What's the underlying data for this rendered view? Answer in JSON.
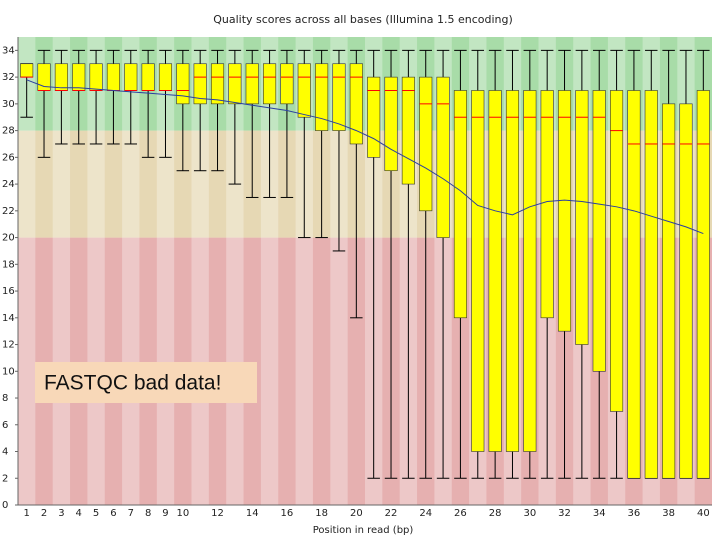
{
  "chart_data": {
    "type": "box",
    "title": "Quality scores across all bases (Illumina 1.5 encoding)",
    "x_label": "Position in read (bp)",
    "annotation": "FASTQC bad data!",
    "categories": [
      "1",
      "2",
      "3",
      "4",
      "5",
      "6",
      "7",
      "8",
      "9",
      "10",
      null,
      "12",
      null,
      "14",
      null,
      "16",
      null,
      "18",
      null,
      "20",
      null,
      "22",
      null,
      "24",
      null,
      "26",
      null,
      "28",
      null,
      "30",
      null,
      "32",
      null,
      "34",
      null,
      "36",
      null,
      "38",
      null,
      "40"
    ],
    "whislo": [
      29,
      26,
      27,
      27,
      27,
      27,
      27,
      26,
      26,
      25,
      25,
      25,
      24,
      23,
      23,
      23,
      20,
      20,
      19,
      14,
      2,
      2,
      2,
      2,
      2,
      2,
      2,
      2,
      2,
      2,
      2,
      2,
      2,
      2,
      2,
      2,
      2,
      2,
      2,
      2
    ],
    "q1": [
      32,
      31,
      31,
      31,
      31,
      31,
      31,
      31,
      31,
      30,
      30,
      30,
      30,
      30,
      30,
      30,
      29,
      28,
      28,
      27,
      26,
      25,
      24,
      22,
      20,
      14,
      4,
      4,
      4,
      4,
      14,
      13,
      12,
      10,
      7,
      2,
      2,
      2,
      2,
      2
    ],
    "median": [
      32,
      31,
      31,
      31,
      31,
      31,
      31,
      31,
      31,
      31,
      32,
      32,
      32,
      32,
      32,
      32,
      32,
      32,
      32,
      32,
      31,
      31,
      31,
      30,
      30,
      29,
      29,
      29,
      29,
      29,
      29,
      29,
      29,
      29,
      28,
      27,
      27,
      27,
      27,
      27
    ],
    "q3": [
      33,
      33,
      33,
      33,
      33,
      33,
      33,
      33,
      33,
      33,
      33,
      33,
      33,
      33,
      33,
      33,
      33,
      33,
      33,
      33,
      32,
      32,
      32,
      32,
      32,
      31,
      31,
      31,
      31,
      31,
      31,
      31,
      31,
      31,
      31,
      31,
      31,
      30,
      30,
      31
    ],
    "whishi": [
      33,
      34,
      34,
      34,
      34,
      34,
      34,
      34,
      34,
      34,
      34,
      34,
      34,
      34,
      34,
      34,
      34,
      34,
      34,
      34,
      34,
      34,
      34,
      34,
      34,
      34,
      34,
      34,
      34,
      34,
      34,
      34,
      34,
      34,
      34,
      34,
      34,
      34,
      34,
      34
    ],
    "mean": [
      31.8,
      31.3,
      31.2,
      31.2,
      31.1,
      31.0,
      30.9,
      30.8,
      30.7,
      30.6,
      30.4,
      30.3,
      30.1,
      29.9,
      29.7,
      29.5,
      29.2,
      28.9,
      28.5,
      28.0,
      27.4,
      26.6,
      25.9,
      25.2,
      24.4,
      23.5,
      22.4,
      22.0,
      21.7,
      22.3,
      22.7,
      22.8,
      22.7,
      22.5,
      22.3,
      22.0,
      21.6,
      21.2,
      20.8,
      20.3
    ],
    "box_color": "#ffff00",
    "median_color": "#ff0000",
    "mean_color": "#2b3fa0",
    "zones": [
      {
        "from": 0,
        "to": 20,
        "color": "#e6b0b0"
      },
      {
        "from": 20,
        "to": 28,
        "color": "#e6d8b4"
      },
      {
        "from": 28,
        "to": 35,
        "color": "#a8dca8"
      }
    ],
    "ylim": [
      0,
      35
    ],
    "yticks": [
      0,
      2,
      4,
      6,
      8,
      10,
      12,
      14,
      16,
      18,
      20,
      22,
      24,
      26,
      28,
      30,
      32,
      34
    ]
  }
}
